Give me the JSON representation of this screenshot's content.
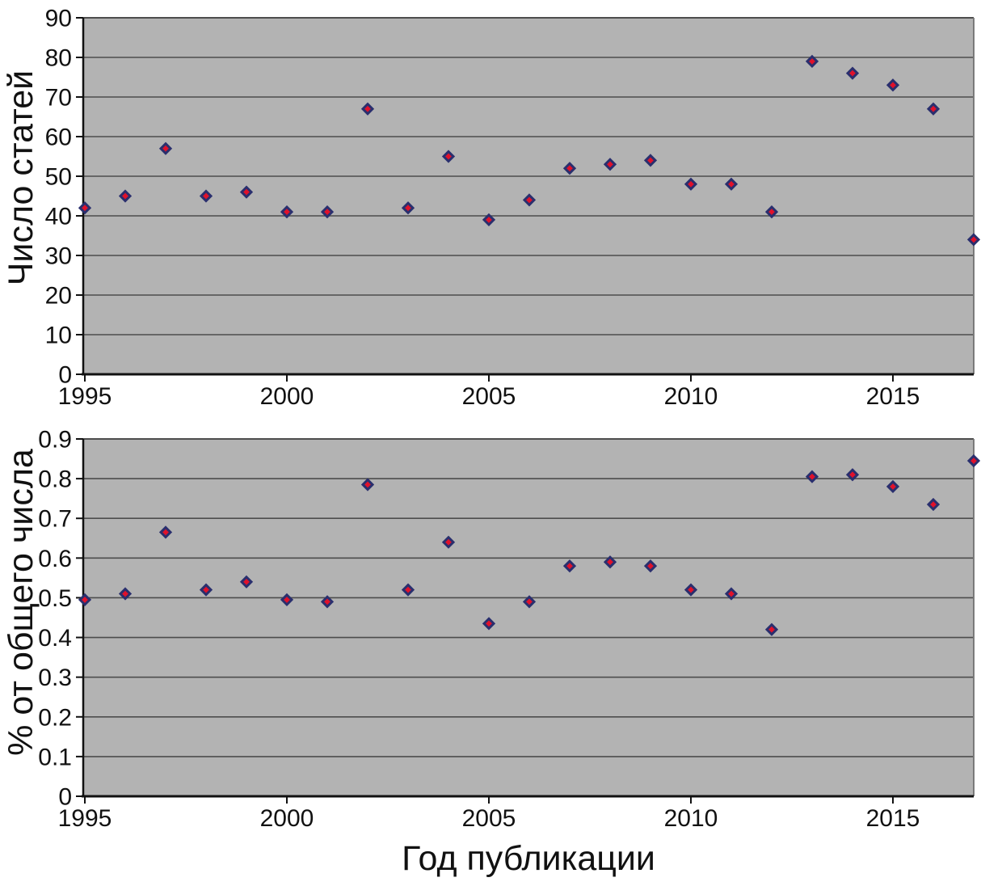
{
  "colors": {
    "plot_bg": "#b3b3b3",
    "grid": "#4d4d4d",
    "axis": "#111111",
    "outer_border": "#7a7a7a",
    "marker_fill": "#e0112b",
    "marker_stroke": "#2a2f6e",
    "text": "#111111"
  },
  "chart_data": [
    {
      "type": "scatter",
      "title": "",
      "ylabel": "Число статей",
      "xlabel": "",
      "x": [
        1995,
        1996,
        1997,
        1998,
        1999,
        2000,
        2001,
        2002,
        2003,
        2004,
        2005,
        2006,
        2007,
        2008,
        2009,
        2010,
        2011,
        2012,
        2013,
        2014,
        2015,
        2016,
        2017
      ],
      "values": [
        42,
        45,
        57,
        45,
        46,
        41,
        41,
        67,
        42,
        55,
        39,
        44,
        52,
        53,
        54,
        48,
        48,
        41,
        79,
        76,
        73,
        67,
        34
      ],
      "ylim": [
        0,
        90
      ],
      "xlim": [
        1995,
        2017
      ],
      "yticks": [
        "0",
        "10",
        "20",
        "30",
        "40",
        "50",
        "60",
        "70",
        "80",
        "90"
      ],
      "xticks": [
        "1995",
        "2000",
        "2005",
        "2010",
        "2015"
      ],
      "grid": "horizontal",
      "legend_position": "none",
      "marker": "diamond"
    },
    {
      "type": "scatter",
      "title": "",
      "ylabel": "% от общего числа",
      "xlabel": "Год публикации",
      "x": [
        1995,
        1996,
        1997,
        1998,
        1999,
        2000,
        2001,
        2002,
        2003,
        2004,
        2005,
        2006,
        2007,
        2008,
        2009,
        2010,
        2011,
        2012,
        2013,
        2014,
        2015,
        2016,
        2017
      ],
      "values": [
        0.495,
        0.51,
        0.665,
        0.52,
        0.54,
        0.495,
        0.49,
        0.785,
        0.52,
        0.64,
        0.435,
        0.49,
        0.58,
        0.59,
        0.58,
        0.52,
        0.51,
        0.42,
        0.805,
        0.81,
        0.78,
        0.735,
        0.845
      ],
      "ylim": [
        0,
        0.9
      ],
      "xlim": [
        1995,
        2017
      ],
      "yticks": [
        "0",
        "0.1",
        "0.2",
        "0.3",
        "0.4",
        "0.5",
        "0.6",
        "0.7",
        "0.8",
        "0.9"
      ],
      "xticks": [
        "1995",
        "2000",
        "2005",
        "2010",
        "2015"
      ],
      "grid": "horizontal",
      "legend_position": "none",
      "marker": "diamond"
    }
  ]
}
